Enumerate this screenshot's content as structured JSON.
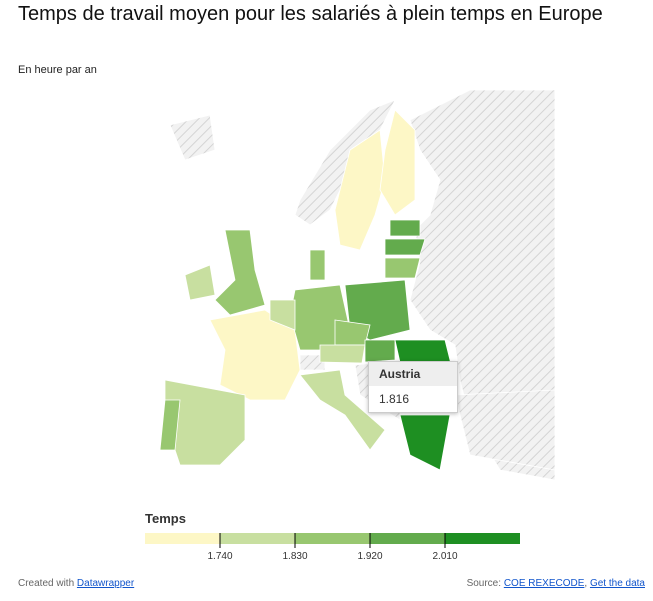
{
  "header": {
    "title": "Temps de travail moyen pour les salariés à plein temps en Europe",
    "subtitle": "En heure par an"
  },
  "legend": {
    "title": "Temps",
    "range": [
      1650,
      2100
    ],
    "ticks": [
      {
        "value": 1740,
        "label": "1.740"
      },
      {
        "value": 1830,
        "label": "1.830"
      },
      {
        "value": 1920,
        "label": "1.920"
      },
      {
        "value": 2010,
        "label": "2.010"
      }
    ],
    "colors": [
      "#fdf7c6",
      "#c8dfa0",
      "#98c770",
      "#63ab4d",
      "#1e8f22"
    ]
  },
  "tooltip": {
    "name": "Austria",
    "value": 1816,
    "value_label": "1.816"
  },
  "footer": {
    "created": "Created with",
    "tool": "Datawrapper",
    "source_label": "Source:",
    "source": "COE REXECODE",
    "separator": ",",
    "data_link": "Get the data"
  }
}
